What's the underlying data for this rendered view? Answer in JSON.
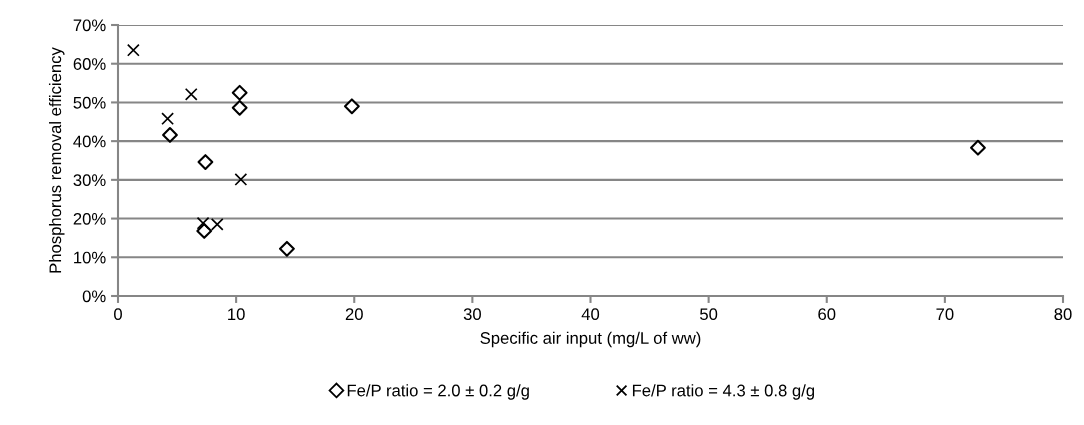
{
  "chart_data": {
    "type": "scatter",
    "xlabel": "Specific air input (mg/L of ww)",
    "ylabel": "Phosphorus removal efficiency",
    "xlim": [
      0,
      80
    ],
    "xticks": [
      0,
      10,
      20,
      30,
      40,
      50,
      60,
      70,
      80
    ],
    "ylim": [
      0,
      0.7
    ],
    "yticks": [
      {
        "value": 0,
        "label": "0%"
      },
      {
        "value": 0.1,
        "label": "10%"
      },
      {
        "value": 0.2,
        "label": "20%"
      },
      {
        "value": 0.3,
        "label": "30%"
      },
      {
        "value": 0.4,
        "label": "40%"
      },
      {
        "value": 0.5,
        "label": "50%"
      },
      {
        "value": 0.6,
        "label": "60%"
      },
      {
        "value": 0.7,
        "label": "70%"
      }
    ],
    "grid": "y",
    "legend": "bottom",
    "series": [
      {
        "name": "Fe/P ratio = 2.0 ± 0.2 g/g",
        "color": "#000000",
        "marker": "diamond",
        "x": [
          4.4,
          10.3,
          10.3,
          19.8,
          7.4,
          7.3,
          14.3,
          72.8
        ],
        "values": [
          0.416,
          0.525,
          0.486,
          0.49,
          0.346,
          0.168,
          0.122,
          0.383
        ]
      },
      {
        "name": "Fe/P ratio = 4.3 ± 0.8 g/g",
        "color": "#000000",
        "marker": "cross",
        "x": [
          1.3,
          6.2,
          4.2,
          10.4,
          7.2,
          8.4
        ],
        "values": [
          0.635,
          0.521,
          0.458,
          0.301,
          0.188,
          0.185
        ]
      }
    ]
  }
}
